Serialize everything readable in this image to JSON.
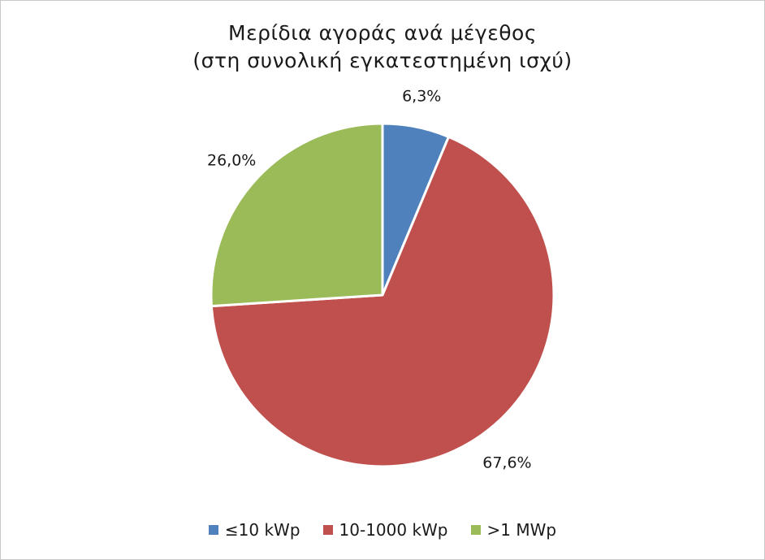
{
  "chart_data": {
    "type": "pie",
    "title": "Μερίδια αγοράς ανά μέγεθος",
    "subtitle": "(στη συνολική εγκατεστημένη ισχύ)",
    "categories": [
      "≤10 kWp",
      "10-1000 kWp",
      ">1 MWp"
    ],
    "values": [
      6.3,
      67.6,
      26.0
    ],
    "data_labels": [
      "6,3%",
      "67,6%",
      "26,0%"
    ],
    "colors": [
      "#4f81bd",
      "#c0504d",
      "#9bbb59"
    ],
    "legend_position": "bottom"
  }
}
